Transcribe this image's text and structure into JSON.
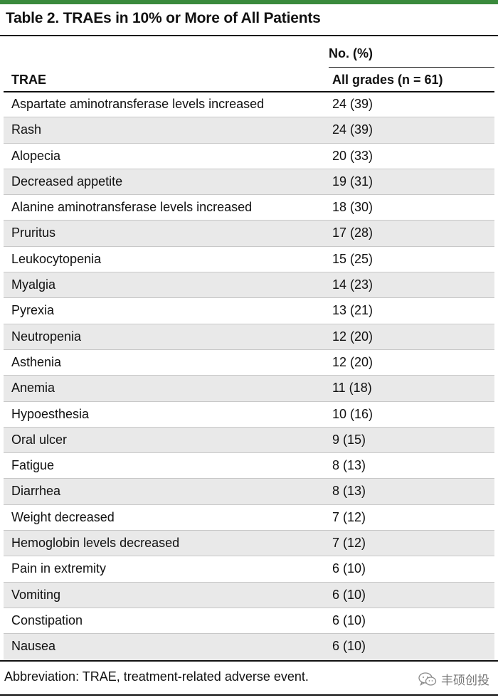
{
  "table": {
    "title": "Table 2. TRAEs in 10% or More of All Patients",
    "column_group_header": "No. (%)",
    "columns": [
      "TRAE",
      "All grades (n = 61)"
    ],
    "rows": [
      {
        "name": "Aspartate aminotransferase levels increased",
        "value": "24 (39)"
      },
      {
        "name": "Rash",
        "value": "24 (39)"
      },
      {
        "name": "Alopecia",
        "value": "20 (33)"
      },
      {
        "name": "Decreased appetite",
        "value": "19 (31)"
      },
      {
        "name": "Alanine aminotransferase levels increased",
        "value": "18 (30)"
      },
      {
        "name": "Pruritus",
        "value": "17 (28)"
      },
      {
        "name": "Leukocytopenia",
        "value": "15 (25)"
      },
      {
        "name": "Myalgia",
        "value": "14 (23)"
      },
      {
        "name": "Pyrexia",
        "value": "13 (21)"
      },
      {
        "name": "Neutropenia",
        "value": "12 (20)"
      },
      {
        "name": "Asthenia",
        "value": "12 (20)"
      },
      {
        "name": "Anemia",
        "value": "11 (18)"
      },
      {
        "name": "Hypoesthesia",
        "value": "10 (16)"
      },
      {
        "name": "Oral ulcer",
        "value": "9 (15)"
      },
      {
        "name": "Fatigue",
        "value": "8 (13)"
      },
      {
        "name": "Diarrhea",
        "value": "8 (13)"
      },
      {
        "name": "Weight decreased",
        "value": "7 (12)"
      },
      {
        "name": "Hemoglobin levels decreased",
        "value": "7 (12)"
      },
      {
        "name": "Pain in extremity",
        "value": "6 (10)"
      },
      {
        "name": "Vomiting",
        "value": "6 (10)"
      },
      {
        "name": "Constipation",
        "value": "6 (10)"
      },
      {
        "name": "Nausea",
        "value": "6 (10)"
      }
    ],
    "footnote": "Abbreviation: TRAE, treatment-related adverse event."
  },
  "watermark": {
    "text": "丰硕创投",
    "icon": "wechat-icon"
  },
  "colors": {
    "accent_rule": "#3a8a3c",
    "shade": "#e9e9e9",
    "row_divider": "#c8c8c8"
  }
}
